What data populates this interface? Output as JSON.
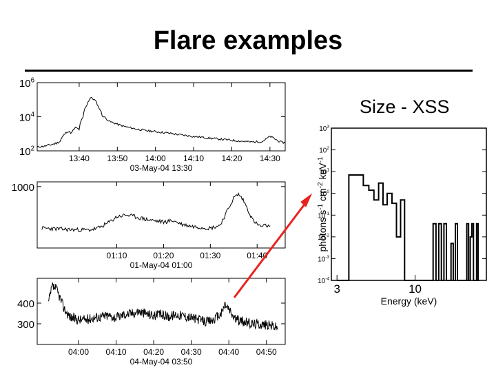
{
  "slide": {
    "title": "Flare examples",
    "spectrum_caption": "Size - XSS"
  },
  "colors": {
    "arrow": "#e8231d",
    "lines": "#000000"
  },
  "chart_data": [
    {
      "type": "line",
      "x_tick_labels": [
        "13:40",
        "13:50",
        "14:00",
        "14:10",
        "14:20",
        "14:30"
      ],
      "x_tick_minutes": [
        10,
        20,
        30,
        40,
        50,
        60
      ],
      "xlabel": "03-May-04  13:30",
      "xlim_minutes": [
        -1,
        64
      ],
      "yscale": "log",
      "ylim": [
        100,
        1000000
      ],
      "y_tick_labels": [
        {
          "base": "10",
          "exp": "6",
          "value": 1000000
        },
        {
          "base": "10",
          "exp": "4",
          "value": 10000
        },
        {
          "base": "10",
          "exp": "2",
          "value": 100
        }
      ],
      "series": [
        {
          "minutes": [
            -1,
            1,
            3,
            4,
            5,
            6,
            7,
            8,
            9,
            10,
            11,
            12,
            13,
            14,
            15,
            16,
            17,
            18,
            20,
            22,
            25,
            28,
            32,
            36,
            40,
            44,
            48,
            52,
            55,
            58,
            59,
            60,
            61,
            62,
            63,
            64
          ],
          "values": [
            165,
            190,
            240,
            280,
            360,
            850,
            1400,
            1100,
            2300,
            1800,
            9000,
            50000,
            130000,
            100000,
            40000,
            12000,
            8000,
            5200,
            3600,
            2600,
            1900,
            1500,
            1200,
            900,
            700,
            560,
            460,
            380,
            330,
            350,
            500,
            700,
            550,
            400,
            320,
            300
          ]
        }
      ]
    },
    {
      "type": "line",
      "x_tick_labels": [
        "01:10",
        "01:20",
        "01:30",
        "01:40"
      ],
      "x_tick_minutes": [
        10,
        20,
        30,
        40
      ],
      "xlabel": "01-May-04  01:00",
      "xlim_minutes": [
        -7,
        46
      ],
      "y_tick_labels": [
        {
          "label": "1000",
          "value": 1000
        }
      ],
      "ylim": [
        350,
        1050
      ],
      "series": [
        {
          "minutes": [
            -6,
            0,
            4,
            6,
            8,
            10,
            12,
            14,
            16,
            18,
            20,
            22,
            24,
            26,
            28,
            30,
            32,
            33,
            34,
            35,
            36,
            37,
            38,
            39,
            40,
            41,
            42,
            43
          ],
          "values": [
            560,
            545,
            540,
            560,
            610,
            680,
            700,
            680,
            655,
            640,
            625,
            640,
            600,
            580,
            570,
            560,
            590,
            680,
            780,
            880,
            920,
            860,
            760,
            650,
            600,
            575,
            590,
            560
          ]
        }
      ]
    },
    {
      "type": "line",
      "x_tick_labels": [
        "04:00",
        "04:10",
        "04:20",
        "04:30",
        "04:40",
        "04:50"
      ],
      "x_tick_minutes": [
        10,
        20,
        30,
        40,
        50,
        60
      ],
      "xlabel": "04-May-04  03:50",
      "xlim_minutes": [
        -1,
        65
      ],
      "y_tick_labels": [
        {
          "label": "400",
          "value": 400
        },
        {
          "label": "300",
          "value": 300
        }
      ],
      "ylim": [
        200,
        520
      ],
      "series": [
        {
          "minutes": [
            2,
            3,
            4,
            5,
            6,
            7,
            8,
            10,
            12,
            14,
            16,
            18,
            20,
            22,
            24,
            26,
            28,
            30,
            32,
            34,
            36,
            38,
            40,
            42,
            44,
            46,
            48,
            49,
            50,
            51,
            52,
            54,
            56,
            58,
            60,
            62,
            63
          ],
          "values": [
            400,
            480,
            470,
            430,
            380,
            350,
            330,
            320,
            320,
            330,
            335,
            340,
            330,
            345,
            350,
            360,
            350,
            340,
            345,
            335,
            345,
            340,
            330,
            320,
            310,
            320,
            350,
            395,
            370,
            340,
            320,
            310,
            300,
            300,
            295,
            290,
            280
          ]
        }
      ]
    },
    {
      "type": "line",
      "title": "",
      "xlabel": "Energy (keV)",
      "ylabel_parts": {
        "a": "photons s",
        "a_exp": "-1",
        "b": " cm",
        "b_exp": "-2",
        "c": " keV",
        "c_exp": "-1"
      },
      "xscale": "log",
      "xlim": [
        2.75,
        30
      ],
      "yscale": "log",
      "ylim": [
        0.0001,
        1000
      ],
      "x_tick_labels": [
        {
          "label": "3",
          "value": 3
        },
        {
          "label": "10",
          "value": 10
        }
      ],
      "y_tick_labels": [
        {
          "base": "10",
          "exp": "3",
          "value": 1000
        },
        {
          "base": "10",
          "exp": "2",
          "value": 100
        },
        {
          "base": "10",
          "exp": "1",
          "value": 10
        },
        {
          "base": "10",
          "exp": "0",
          "value": 1
        },
        {
          "base": "10",
          "exp": "-1",
          "value": 0.1
        },
        {
          "base": "10",
          "exp": "-2",
          "value": 0.01
        },
        {
          "base": "10",
          "exp": "-3",
          "value": 0.001
        },
        {
          "base": "10",
          "exp": "-4",
          "value": 0.0001
        }
      ],
      "series": [
        {
          "style": "histogram",
          "bin_edges": [
            3.0,
            3.3,
            3.6,
            3.9,
            4.2,
            4.5,
            4.9,
            5.3,
            5.7,
            6.1,
            6.5,
            7.0,
            7.5,
            8.0,
            8.5,
            9.0,
            9.6,
            10.2,
            10.8,
            11.4,
            12.0,
            12.6,
            13.2,
            13.8,
            14.4,
            15.0,
            15.6,
            16.2,
            16.8,
            17.4,
            18.0,
            18.6,
            19.2,
            19.8,
            20.4,
            21.0,
            21.6,
            22.2,
            22.8,
            23.4,
            24.0,
            24.6,
            25.2,
            25.8,
            26.4,
            27.0
          ],
          "values": [
            0.0001,
            0.0001,
            7,
            7,
            7,
            2.3,
            1.4,
            0.5,
            3,
            0.3,
            1,
            0.35,
            0.01,
            0.5,
            0.0001,
            0.0001,
            0.0001,
            0.0001,
            0.0001,
            0.0001,
            0.0001,
            0.0001,
            0.04,
            0.0001,
            0.04,
            0.0001,
            0.04,
            0.0001,
            0.0001,
            0.005,
            0.0001,
            0.04,
            0.0001,
            0.0001,
            0.0001,
            0.0001,
            0.0001,
            0.04,
            0.0001,
            0.01,
            0.04,
            0.0001,
            0.0001,
            0.04,
            0.0001
          ]
        }
      ]
    }
  ]
}
